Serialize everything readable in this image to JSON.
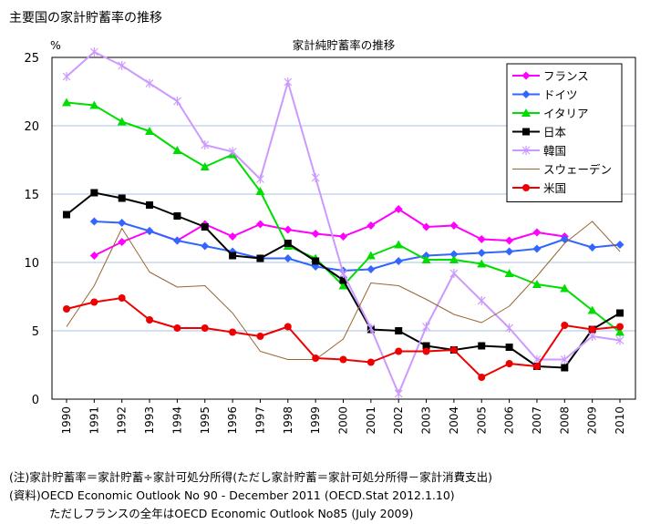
{
  "page_title": "主要国の家計貯蓄率の推移",
  "notes": [
    "(注)家計貯蓄率＝家計貯蓄÷家計可処分所得(ただし家計貯蓄＝家計可処分所得－家計消費支出)",
    "(資料)OECD Economic Outlook No 90 - December 2011 (OECD.Stat 2012.1.10)",
    "ただしフランスの全年はOECD Economic Outlook No85 (July 2009)"
  ],
  "chart_data": {
    "type": "line",
    "title": "家計純貯蓄率の推移",
    "ylabel": "%",
    "xlabel": "",
    "ylim": [
      0,
      25
    ],
    "yticks": [
      0,
      5,
      10,
      15,
      20,
      25
    ],
    "categories": [
      "1990",
      "1991",
      "1992",
      "1993",
      "1994",
      "1995",
      "1996",
      "1997",
      "1998",
      "1999",
      "2000",
      "2001",
      "2002",
      "2003",
      "2004",
      "2005",
      "2006",
      "2007",
      "2008",
      "2009",
      "2010"
    ],
    "grid": "horizontal",
    "legend_position": "top-right",
    "series": [
      {
        "name": "フランス",
        "color": "#ff00ff",
        "marker": "diamond",
        "values": [
          null,
          10.5,
          11.5,
          12.3,
          11.6,
          12.8,
          11.9,
          12.8,
          12.4,
          12.1,
          11.9,
          12.7,
          13.9,
          12.6,
          12.7,
          11.7,
          11.6,
          12.2,
          11.9,
          null,
          null
        ]
      },
      {
        "name": "ドイツ",
        "color": "#3366ff",
        "marker": "diamond",
        "values": [
          null,
          13.0,
          12.9,
          12.3,
          11.6,
          11.2,
          10.8,
          10.3,
          10.3,
          9.7,
          9.4,
          9.5,
          10.1,
          10.5,
          10.6,
          10.7,
          10.8,
          11.0,
          11.7,
          11.1,
          11.3
        ]
      },
      {
        "name": "イタリア",
        "color": "#00dd00",
        "marker": "triangle",
        "values": [
          21.7,
          21.5,
          20.3,
          19.6,
          18.2,
          17.0,
          17.9,
          15.2,
          11.2,
          10.3,
          8.3,
          10.5,
          11.3,
          10.2,
          10.2,
          9.9,
          9.2,
          8.4,
          8.1,
          6.5,
          4.9
        ]
      },
      {
        "name": "日本",
        "color": "#000000",
        "marker": "square",
        "values": [
          13.5,
          15.1,
          14.7,
          14.2,
          13.4,
          12.6,
          10.5,
          10.3,
          11.4,
          10.1,
          8.7,
          5.1,
          5.0,
          3.9,
          3.6,
          3.9,
          3.8,
          2.4,
          2.3,
          5.1,
          6.3
        ]
      },
      {
        "name": "韓国",
        "color": "#cc99ff",
        "marker": "asterisk",
        "values": [
          23.6,
          25.4,
          24.4,
          23.1,
          21.8,
          18.6,
          18.1,
          16.1,
          23.2,
          16.2,
          9.2,
          5.2,
          0.4,
          5.3,
          9.2,
          7.2,
          5.2,
          2.9,
          2.9,
          4.6,
          4.3
        ]
      },
      {
        "name": "スウェーデン",
        "color": "#996633",
        "marker": "none",
        "values": [
          5.3,
          8.3,
          12.5,
          9.3,
          8.2,
          8.3,
          6.3,
          3.5,
          2.9,
          2.9,
          4.4,
          8.5,
          8.3,
          7.3,
          6.2,
          5.6,
          6.8,
          9.0,
          11.4,
          13.0,
          10.8
        ]
      },
      {
        "name": "米国",
        "color": "#ee0000",
        "marker": "circle",
        "values": [
          6.6,
          7.1,
          7.4,
          5.8,
          5.2,
          5.2,
          4.9,
          4.6,
          5.3,
          3.0,
          2.9,
          2.7,
          3.5,
          3.5,
          3.6,
          1.6,
          2.6,
          2.4,
          5.4,
          5.1,
          5.3
        ]
      }
    ]
  }
}
